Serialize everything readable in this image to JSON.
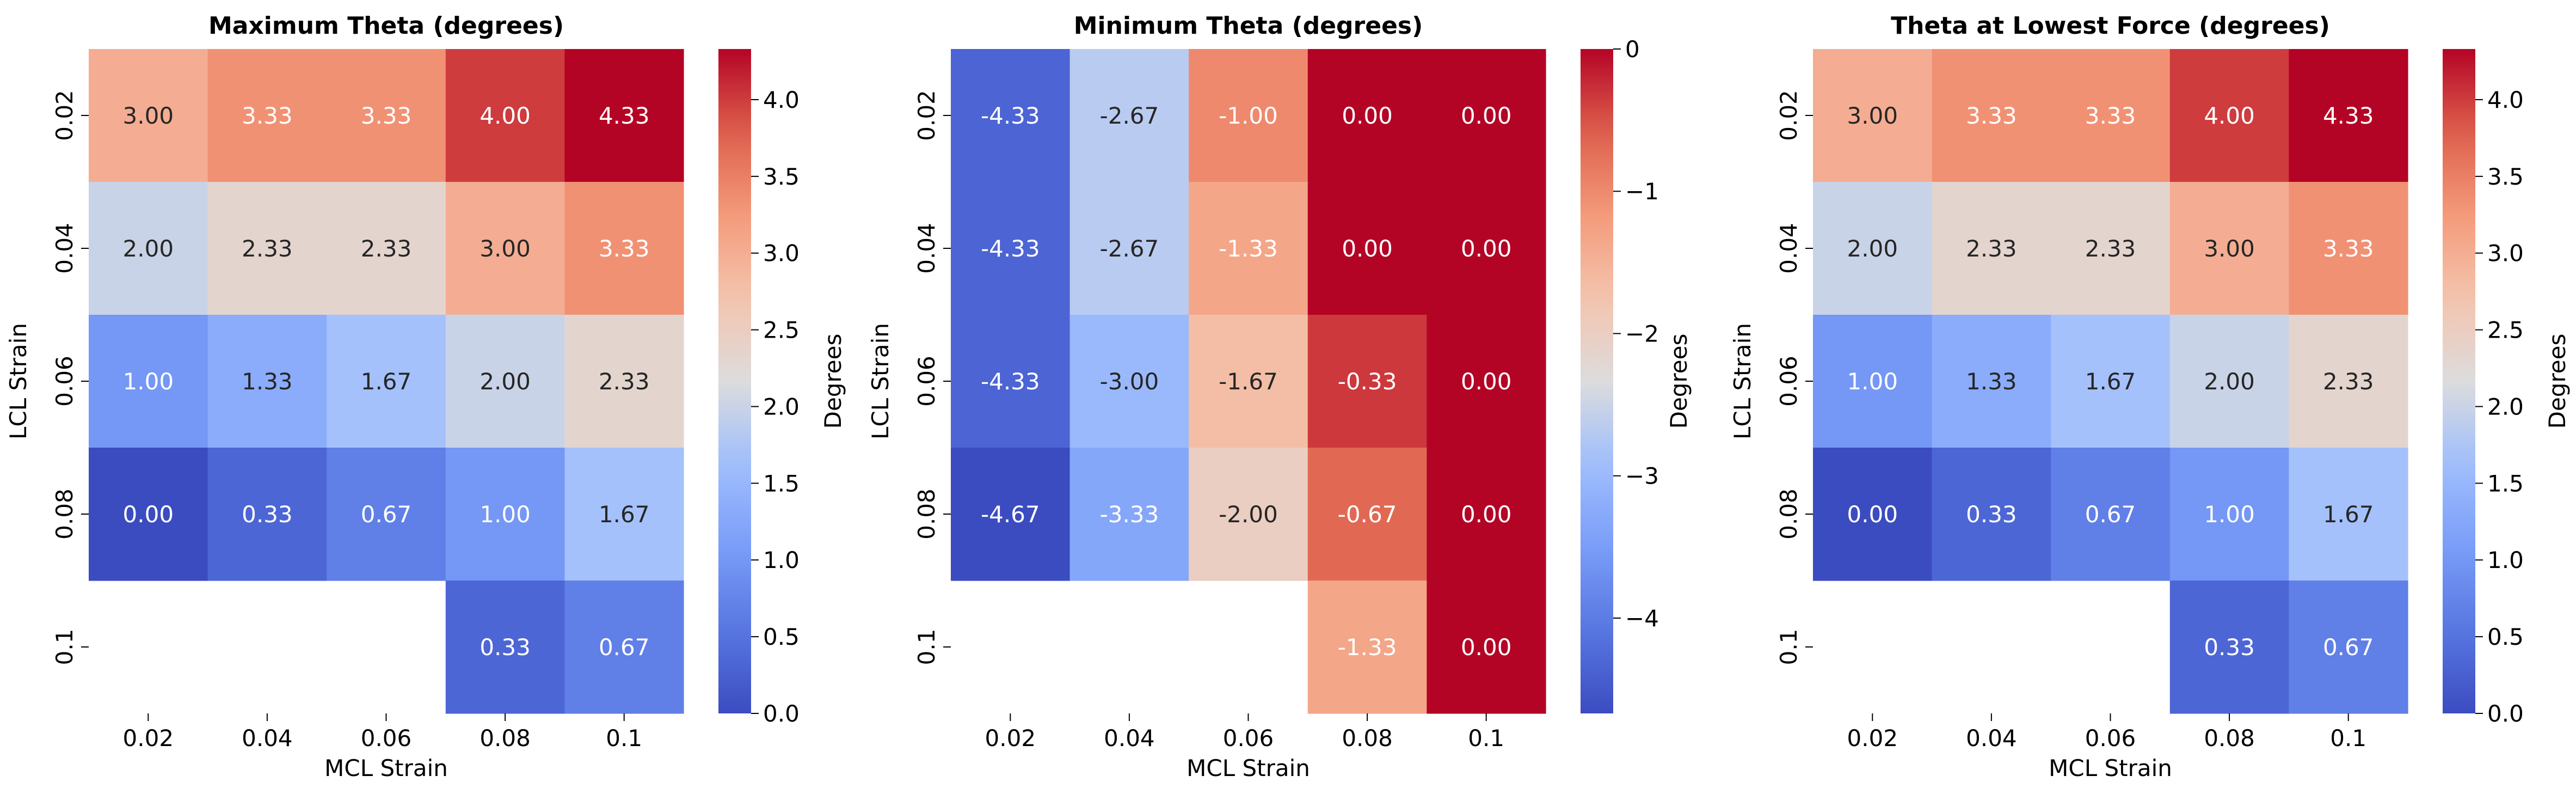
{
  "chart_data": [
    {
      "type": "heatmap",
      "title": "Maximum Theta (degrees)",
      "xlabel": "MCL Strain",
      "ylabel": "LCL Strain",
      "x_categories": [
        "0.02",
        "0.04",
        "0.06",
        "0.08",
        "0.1"
      ],
      "y_categories": [
        "0.02",
        "0.04",
        "0.06",
        "0.08",
        "0.1"
      ],
      "values": [
        [
          3.0,
          3.33,
          3.33,
          4.0,
          4.33
        ],
        [
          2.0,
          2.33,
          2.33,
          3.0,
          3.33
        ],
        [
          1.0,
          1.33,
          1.67,
          2.0,
          2.33
        ],
        [
          0.0,
          0.33,
          0.67,
          1.0,
          1.67
        ],
        [
          null,
          null,
          null,
          0.33,
          0.67
        ]
      ],
      "colorbar": {
        "label": "Degrees",
        "range": [
          0,
          4.33
        ],
        "ticks": [
          "0.0",
          "0.5",
          "1.0",
          "1.5",
          "2.0",
          "2.5",
          "3.0",
          "3.5",
          "4.0"
        ],
        "tick_values": [
          0,
          0.5,
          1,
          1.5,
          2,
          2.5,
          3,
          3.5,
          4
        ]
      },
      "colormap": "coolwarm"
    },
    {
      "type": "heatmap",
      "title": "Minimum Theta (degrees)",
      "xlabel": "MCL Strain",
      "ylabel": "LCL Strain",
      "x_categories": [
        "0.02",
        "0.04",
        "0.06",
        "0.08",
        "0.1"
      ],
      "y_categories": [
        "0.02",
        "0.04",
        "0.06",
        "0.08",
        "0.1"
      ],
      "values": [
        [
          -4.33,
          -2.67,
          -1.0,
          0.0,
          0.0
        ],
        [
          -4.33,
          -2.67,
          -1.33,
          0.0,
          0.0
        ],
        [
          -4.33,
          -3.0,
          -1.67,
          -0.33,
          0.0
        ],
        [
          -4.67,
          -3.33,
          -2.0,
          -0.67,
          0.0
        ],
        [
          null,
          null,
          null,
          -1.33,
          0.0
        ]
      ],
      "colorbar": {
        "label": "Degrees",
        "range": [
          -4.67,
          0
        ],
        "ticks": [
          "−4",
          "−3",
          "−2",
          "−1",
          "0"
        ],
        "tick_values": [
          -4,
          -3,
          -2,
          -1,
          0
        ]
      },
      "colormap": "coolwarm"
    },
    {
      "type": "heatmap",
      "title": "Theta at Lowest Force (degrees)",
      "xlabel": "MCL Strain",
      "ylabel": "LCL Strain",
      "x_categories": [
        "0.02",
        "0.04",
        "0.06",
        "0.08",
        "0.1"
      ],
      "y_categories": [
        "0.02",
        "0.04",
        "0.06",
        "0.08",
        "0.1"
      ],
      "values": [
        [
          3.0,
          3.33,
          3.33,
          4.0,
          4.33
        ],
        [
          2.0,
          2.33,
          2.33,
          3.0,
          3.33
        ],
        [
          1.0,
          1.33,
          1.67,
          2.0,
          2.33
        ],
        [
          0.0,
          0.33,
          0.67,
          1.0,
          1.67
        ],
        [
          null,
          null,
          null,
          0.33,
          0.67
        ]
      ],
      "colorbar": {
        "label": "Degrees",
        "range": [
          0,
          4.33
        ],
        "ticks": [
          "0.0",
          "0.5",
          "1.0",
          "1.5",
          "2.0",
          "2.5",
          "3.0",
          "3.5",
          "4.0"
        ],
        "tick_values": [
          0,
          0.5,
          1,
          1.5,
          2,
          2.5,
          3,
          3.5,
          4
        ]
      },
      "colormap": "coolwarm"
    }
  ]
}
